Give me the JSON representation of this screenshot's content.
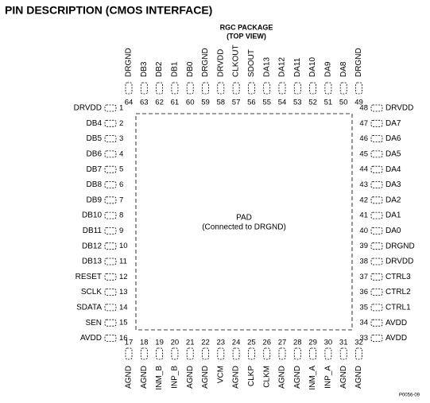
{
  "header": {
    "title": "PIN DESCRIPTION (CMOS INTERFACE)",
    "package": "RGC PACKAGE",
    "view": "(TOP VIEW)"
  },
  "pad": {
    "label": "PAD",
    "note": "(Connected to DRGND)"
  },
  "figure_id": "P0056-09",
  "pins": {
    "left": [
      {
        "number": 1,
        "name": "DRVDD"
      },
      {
        "number": 2,
        "name": "DB4"
      },
      {
        "number": 3,
        "name": "DB5"
      },
      {
        "number": 4,
        "name": "DB6"
      },
      {
        "number": 5,
        "name": "DB7"
      },
      {
        "number": 6,
        "name": "DB8"
      },
      {
        "number": 7,
        "name": "DB9"
      },
      {
        "number": 8,
        "name": "DB10"
      },
      {
        "number": 9,
        "name": "DB11"
      },
      {
        "number": 10,
        "name": "DB12"
      },
      {
        "number": 11,
        "name": "DB13"
      },
      {
        "number": 12,
        "name": "RESET"
      },
      {
        "number": 13,
        "name": "SCLK"
      },
      {
        "number": 14,
        "name": "SDATA"
      },
      {
        "number": 15,
        "name": "SEN"
      },
      {
        "number": 16,
        "name": "AVDD"
      }
    ],
    "bottom": [
      {
        "number": 17,
        "name": "AGND"
      },
      {
        "number": 18,
        "name": "AGND"
      },
      {
        "number": 19,
        "name": "INM_B"
      },
      {
        "number": 20,
        "name": "INP_B"
      },
      {
        "number": 21,
        "name": "AGND"
      },
      {
        "number": 22,
        "name": "AGND"
      },
      {
        "number": 23,
        "name": "VCM"
      },
      {
        "number": 24,
        "name": "AGND"
      },
      {
        "number": 25,
        "name": "CLKP"
      },
      {
        "number": 26,
        "name": "CLKM"
      },
      {
        "number": 27,
        "name": "AGND"
      },
      {
        "number": 28,
        "name": "AGND"
      },
      {
        "number": 29,
        "name": "INM_A"
      },
      {
        "number": 30,
        "name": "INP_A"
      },
      {
        "number": 31,
        "name": "AGND"
      },
      {
        "number": 32,
        "name": "AGND"
      }
    ],
    "right": [
      {
        "number": 48,
        "name": "DRVDD"
      },
      {
        "number": 47,
        "name": "DA7"
      },
      {
        "number": 46,
        "name": "DA6"
      },
      {
        "number": 45,
        "name": "DA5"
      },
      {
        "number": 44,
        "name": "DA4"
      },
      {
        "number": 43,
        "name": "DA3"
      },
      {
        "number": 42,
        "name": "DA2"
      },
      {
        "number": 41,
        "name": "DA1"
      },
      {
        "number": 40,
        "name": "DA0"
      },
      {
        "number": 39,
        "name": "DRGND"
      },
      {
        "number": 38,
        "name": "DRVDD"
      },
      {
        "number": 37,
        "name": "CTRL3"
      },
      {
        "number": 36,
        "name": "CTRL2"
      },
      {
        "number": 35,
        "name": "CTRL1"
      },
      {
        "number": 34,
        "name": "AVDD"
      },
      {
        "number": 33,
        "name": "AVDD"
      }
    ],
    "top": [
      {
        "number": 64,
        "name": "DRGND"
      },
      {
        "number": 63,
        "name": "DB3"
      },
      {
        "number": 62,
        "name": "DB2"
      },
      {
        "number": 61,
        "name": "DB1"
      },
      {
        "number": 60,
        "name": "DB0"
      },
      {
        "number": 59,
        "name": "DRGND"
      },
      {
        "number": 58,
        "name": "DRVDD"
      },
      {
        "number": 57,
        "name": "CLKOUT"
      },
      {
        "number": 56,
        "name": "SDOUT"
      },
      {
        "number": 55,
        "name": "DA13"
      },
      {
        "number": 54,
        "name": "DA12"
      },
      {
        "number": 53,
        "name": "DA11"
      },
      {
        "number": 52,
        "name": "DA10"
      },
      {
        "number": 51,
        "name": "DA9"
      },
      {
        "number": 50,
        "name": "DA8"
      },
      {
        "number": 49,
        "name": "DRGND"
      }
    ]
  }
}
